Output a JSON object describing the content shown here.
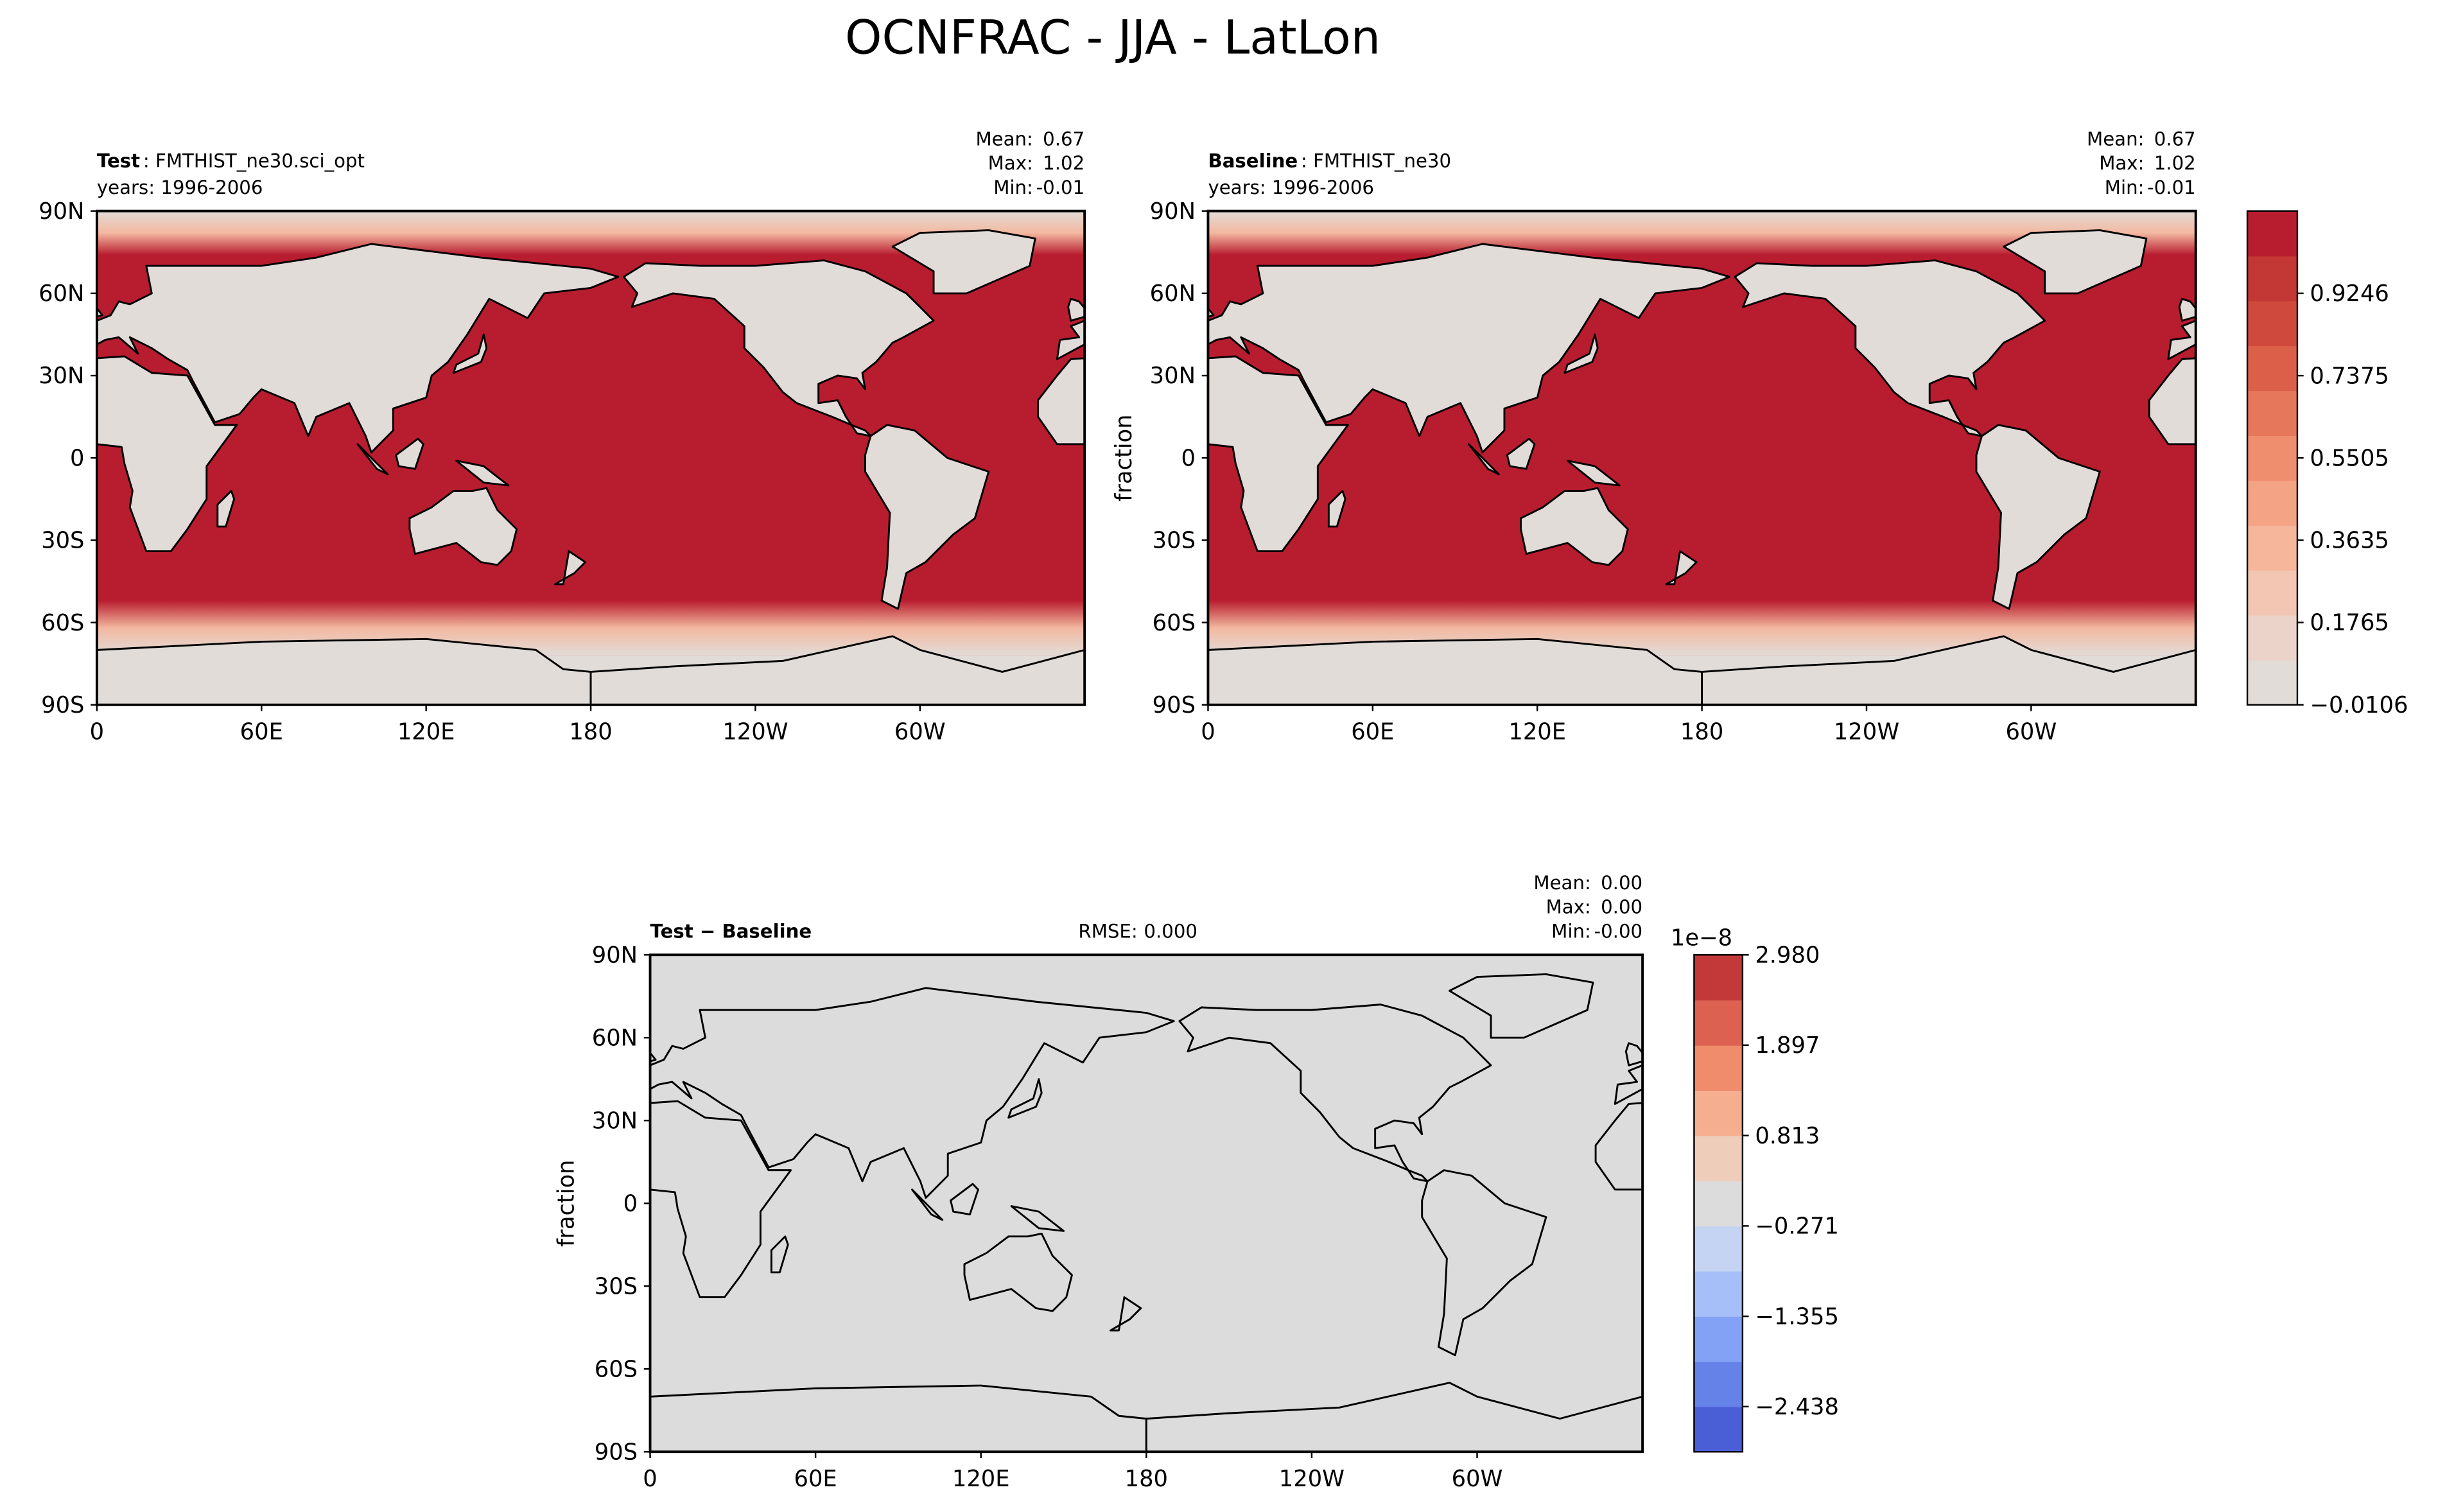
{
  "title": "OCNFRAC - JJA - LatLon",
  "chart_data": [
    {
      "type": "map",
      "title_bold": "Test",
      "title": ": FMTHIST_ne30.sci_opt",
      "subtitle": "years: 1996-2006",
      "stats": [
        {
          "name": "Mean:",
          "value": 0.67
        },
        {
          "name": "Max:",
          "value": 1.02
        },
        {
          "name": "Min:",
          "value": -0.01
        }
      ],
      "ocean_color": "#b81d2f",
      "land_color": "#e2dcd8",
      "xlim": [
        0,
        360
      ],
      "xticks": [
        0,
        {
          "value": 60,
          "label": "60E"
        },
        {
          "value": 120,
          "label": "120E"
        },
        180,
        {
          "value": 240,
          "label": "120W"
        },
        {
          "value": 300,
          "label": "60W"
        }
      ],
      "ylim": [
        -90,
        90
      ],
      "yticks": [
        {
          "value": -90,
          "label": "90S"
        },
        {
          "value": -60,
          "label": "60S"
        },
        {
          "value": -30,
          "label": "30S"
        },
        0,
        {
          "value": 30,
          "label": "30N"
        },
        {
          "value": 60,
          "label": "60N"
        },
        {
          "value": 90,
          "label": "90N"
        }
      ]
    },
    {
      "type": "map",
      "title_bold": "Baseline",
      "title": ": FMTHIST_ne30",
      "subtitle": "years: 1996-2006",
      "ylabel": "fraction",
      "stats": [
        {
          "name": "Mean:",
          "value": 0.67
        },
        {
          "name": "Max:",
          "value": 1.02
        },
        {
          "name": "Min:",
          "value": -0.01
        }
      ],
      "ocean_color": "#b81d2f",
      "land_color": "#e2dcd8",
      "xlim": [
        0,
        360
      ],
      "xticks": [
        0,
        {
          "value": 60,
          "label": "60E"
        },
        {
          "value": 120,
          "label": "120E"
        },
        180,
        {
          "value": 240,
          "label": "120W"
        },
        {
          "value": 300,
          "label": "60W"
        }
      ],
      "ylim": [
        -90,
        90
      ],
      "yticks": [
        {
          "value": -90,
          "label": "90S"
        },
        {
          "value": -60,
          "label": "60S"
        },
        {
          "value": -30,
          "label": "30S"
        },
        0,
        {
          "value": 30,
          "label": "30N"
        },
        {
          "value": 60,
          "label": "60N"
        },
        {
          "value": 90,
          "label": "90N"
        }
      ],
      "colorbar": {
        "lim": [
          -0.0106,
          1.1117
        ],
        "ticks": [
          {
            "value": -0.0106,
            "label": "−0.0106"
          },
          0.1765,
          0.3635,
          0.5505,
          0.7375,
          0.9246
        ],
        "colors": [
          "#e2dcd8",
          "#ecd3c9",
          "#f2c6b2",
          "#f5b69b",
          "#f4a385",
          "#ef8e6e",
          "#e6775a",
          "#dc6049",
          "#cf4a3d",
          "#c33734",
          "#b81d2f"
        ]
      }
    },
    {
      "type": "map",
      "title_bold": "Test − Baseline",
      "ylabel": "fraction",
      "rmse": {
        "name": "RMSE:",
        "value": 0,
        "label": "0.000"
      },
      "stats": [
        {
          "name": "Mean:",
          "value": 0,
          "label": "0.00"
        },
        {
          "name": "Max:",
          "value": 0,
          "label": "0.00"
        },
        {
          "name": "Min:",
          "value": 0,
          "label": "-0.00"
        }
      ],
      "ocean_color": "#dcdcdc",
      "land_color": "#dcdcdc",
      "xlim": [
        0,
        360
      ],
      "xticks": [
        0,
        {
          "value": 60,
          "label": "60E"
        },
        {
          "value": 120,
          "label": "120E"
        },
        180,
        {
          "value": 240,
          "label": "120W"
        },
        {
          "value": 300,
          "label": "60W"
        }
      ],
      "ylim": [
        -90,
        90
      ],
      "yticks": [
        {
          "value": -90,
          "label": "90S"
        },
        {
          "value": -60,
          "label": "60S"
        },
        {
          "value": -30,
          "label": "30S"
        },
        0,
        {
          "value": 30,
          "label": "30N"
        },
        {
          "value": 60,
          "label": "60N"
        },
        {
          "value": 90,
          "label": "90N"
        }
      ],
      "colorbar": {
        "lim": [
          -2.98,
          2.98
        ],
        "offset": "1e−8",
        "ticks": [
          {
            "value": -2.438,
            "label": "−2.438"
          },
          {
            "value": -1.355,
            "label": "−1.355"
          },
          {
            "value": -0.271,
            "label": "−0.271"
          },
          0.813,
          1.897,
          {
            "value": 2.98,
            "label": "2.980"
          }
        ],
        "colors": [
          "#4a5ed6",
          "#6582e8",
          "#84a2f5",
          "#a6bff9",
          "#c4d4f2",
          "#dcdcdc",
          "#efcdbb",
          "#f5ae90",
          "#f08c6b",
          "#dd6150",
          "#c3393a"
        ]
      }
    }
  ]
}
